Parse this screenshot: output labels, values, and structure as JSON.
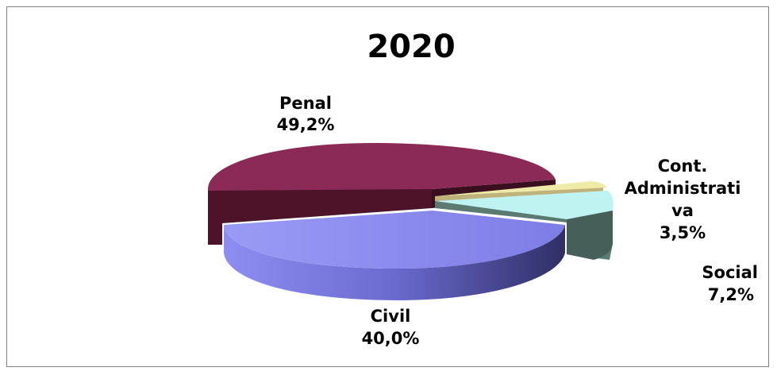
{
  "chart_data": {
    "type": "pie",
    "title": "2020",
    "slices": [
      {
        "name": "Penal",
        "value": 49.2,
        "label": "49,2%",
        "color": "#8b2a56"
      },
      {
        "name": "Cont. Administrativa",
        "name_lines": [
          "Cont.",
          "Administrati",
          "va"
        ],
        "value": 3.5,
        "label": "3,5%",
        "color": "#f0eaa8"
      },
      {
        "name": "Social",
        "value": 7.2,
        "label": "7,2%",
        "color": "#bff3f2"
      },
      {
        "name": "Civil",
        "value": 40.0,
        "label": "40,0%",
        "color": "#8c8cf0"
      }
    ],
    "style": "3d-exploded",
    "legend": "none"
  }
}
